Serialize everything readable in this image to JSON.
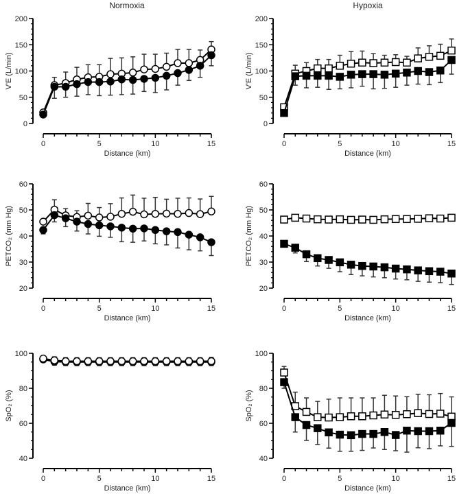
{
  "column_titles": [
    "Normoxia",
    "Hypoxia"
  ],
  "chart_data": [
    {
      "type": "line",
      "panel": "normoxia-ve",
      "column": "Normoxia",
      "marker": "circle",
      "ylabel": "V'E (L/min)",
      "xlabel": "Distance (km)",
      "xlim": [
        0,
        15
      ],
      "xticks": [
        0,
        5,
        10,
        15
      ],
      "ylim": [
        0,
        200
      ],
      "yticks": [
        0,
        50,
        100,
        150,
        200
      ],
      "yminor": 10,
      "x": [
        0,
        1,
        2,
        3,
        4,
        5,
        6,
        7,
        8,
        9,
        10,
        11,
        12,
        13,
        14,
        15
      ],
      "series": [
        {
          "name": "open",
          "fill": "#ffffff",
          "values": [
            21,
            73,
            77,
            84,
            88,
            89,
            94,
            95,
            97,
            103,
            104,
            108,
            115,
            115,
            121,
            141
          ],
          "sd": [
            0,
            15,
            21,
            23,
            24,
            23,
            30,
            30,
            30,
            29,
            28,
            26,
            26,
            26,
            19,
            15
          ],
          "err_dir": "up"
        },
        {
          "name": "filled",
          "fill": "#000000",
          "values": [
            17,
            70,
            70,
            75,
            79,
            79,
            80,
            84,
            83,
            85,
            87,
            91,
            96,
            102,
            110,
            130
          ],
          "sd": [
            0,
            22,
            20,
            23,
            24,
            26,
            26,
            29,
            27,
            24,
            28,
            27,
            23,
            20,
            22,
            20
          ],
          "err_dir": "down"
        }
      ]
    },
    {
      "type": "line",
      "panel": "hypoxia-ve",
      "column": "Hypoxia",
      "marker": "square",
      "ylabel": "V'E (L/min)",
      "xlabel": "Distance (km)",
      "xlim": [
        0,
        15
      ],
      "xticks": [
        0,
        5,
        10,
        15
      ],
      "ylim": [
        0,
        200
      ],
      "yticks": [
        0,
        50,
        100,
        150,
        200
      ],
      "yminor": 10,
      "x": [
        0,
        1,
        2,
        3,
        4,
        5,
        6,
        7,
        8,
        9,
        10,
        11,
        12,
        13,
        14,
        15
      ],
      "series": [
        {
          "name": "open",
          "fill": "#ffffff",
          "values": [
            31,
            95,
            100,
            105,
            105,
            110,
            114,
            116,
            115,
            116,
            117,
            116,
            124,
            127,
            129,
            139
          ],
          "sd": [
            0,
            16,
            16,
            17,
            17,
            20,
            23,
            22,
            18,
            14,
            14,
            12,
            20,
            21,
            22,
            22
          ],
          "err_dir": "up"
        },
        {
          "name": "filled",
          "fill": "#000000",
          "values": [
            20,
            90,
            91,
            91,
            91,
            89,
            93,
            94,
            94,
            93,
            95,
            97,
            100,
            98,
            101,
            121
          ],
          "sd": [
            0,
            17,
            23,
            22,
            26,
            23,
            25,
            23,
            28,
            26,
            26,
            24,
            25,
            24,
            23,
            27
          ],
          "err_dir": "down"
        }
      ]
    },
    {
      "type": "line",
      "panel": "normoxia-petco2",
      "column": "Normoxia",
      "marker": "circle",
      "ylabel": "PETCO₂ (mm Hg)",
      "xlabel": "Distance (km)",
      "xlim": [
        0,
        15
      ],
      "xticks": [
        0,
        5,
        10,
        15
      ],
      "ylim": [
        20,
        60
      ],
      "yticks": [
        20,
        30,
        40,
        50,
        60
      ],
      "yminor": 2,
      "x": [
        0,
        1,
        2,
        3,
        4,
        5,
        6,
        7,
        8,
        9,
        10,
        11,
        12,
        13,
        14,
        15
      ],
      "series": [
        {
          "name": "open",
          "fill": "#ffffff",
          "values": [
            45.5,
            50.1,
            47.9,
            47.3,
            47.8,
            47.1,
            47.4,
            48.5,
            49.3,
            48.3,
            48.5,
            48.6,
            48.5,
            48.8,
            48.4,
            49.4
          ],
          "sd": [
            0,
            3.8,
            2.6,
            2.4,
            4.7,
            3.8,
            5,
            6.1,
            6.4,
            6.2,
            6.3,
            5.5,
            6,
            5.8,
            5.8,
            5.8
          ],
          "err_dir": "up"
        },
        {
          "name": "filled",
          "fill": "#000000",
          "values": [
            42.3,
            48,
            46.8,
            45.5,
            44.6,
            44.1,
            43.7,
            43.2,
            42.8,
            42.9,
            42.3,
            41.8,
            41.5,
            40.5,
            39.5,
            37.6
          ],
          "sd": [
            1.5,
            2.6,
            3.2,
            3.6,
            3.8,
            4.2,
            4.2,
            5.4,
            5.2,
            4.8,
            5.3,
            5.2,
            6.1,
            5.8,
            5.2,
            5.1
          ],
          "err_dir": "down"
        }
      ]
    },
    {
      "type": "line",
      "panel": "hypoxia-petco2",
      "column": "Hypoxia",
      "marker": "square",
      "ylabel": "PETCO₂ (mm Hg)",
      "xlabel": "Distance (km)",
      "xlim": [
        0,
        15
      ],
      "xticks": [
        0,
        5,
        10,
        15
      ],
      "ylim": [
        20,
        60
      ],
      "yticks": [
        20,
        30,
        40,
        50,
        60
      ],
      "yminor": 2,
      "x": [
        0,
        1,
        2,
        3,
        4,
        5,
        6,
        7,
        8,
        9,
        10,
        11,
        12,
        13,
        14,
        15
      ],
      "series": [
        {
          "name": "open",
          "fill": "#ffffff",
          "values": [
            46.3,
            47,
            46.7,
            46.4,
            46.3,
            46.4,
            46.2,
            46.3,
            46.2,
            46.4,
            46.5,
            46.5,
            46.6,
            46.8,
            46.7,
            47
          ],
          "sd": [
            0.8,
            1,
            0.9,
            0.9,
            0.9,
            1,
            1,
            1,
            0.9,
            1,
            1,
            1,
            1,
            1.2,
            1.1,
            1.3
          ],
          "err_dir": "up"
        },
        {
          "name": "filled",
          "fill": "#000000",
          "values": [
            37,
            35.5,
            33,
            31.5,
            30.8,
            29.9,
            29,
            28.5,
            28.3,
            28,
            27.5,
            27.2,
            26.8,
            26.5,
            26.3,
            25.6
          ],
          "sd": [
            1,
            2,
            2.8,
            3,
            3.2,
            3.6,
            3.8,
            3.8,
            4,
            4,
            4,
            4,
            4.2,
            4.2,
            4.2,
            4.2
          ],
          "err_dir": "down"
        }
      ]
    },
    {
      "type": "line",
      "panel": "normoxia-spo2",
      "column": "Normoxia",
      "marker": "circle",
      "ylabel": "SpO₂ (%)",
      "xlabel": "Distance (km)",
      "xlim": [
        0,
        15
      ],
      "xticks": [
        0,
        5,
        10,
        15
      ],
      "ylim": [
        40,
        100
      ],
      "yticks": [
        40,
        60,
        80,
        100
      ],
      "yminor": 5,
      "x": [
        0,
        1,
        2,
        3,
        4,
        5,
        6,
        7,
        8,
        9,
        10,
        11,
        12,
        13,
        14,
        15
      ],
      "series": [
        {
          "name": "filled",
          "fill": "#000000",
          "values": [
            96.5,
            95.2,
            95,
            95,
            95,
            95,
            95,
            95,
            95,
            95,
            95,
            95,
            95,
            95,
            95,
            95
          ],
          "sd": [
            1,
            2,
            2,
            2,
            2,
            2,
            2,
            2,
            2,
            2,
            2,
            2,
            2,
            2,
            2,
            2
          ],
          "err_dir": "both"
        },
        {
          "name": "open",
          "fill": "#ffffff",
          "values": [
            97,
            96,
            95.5,
            95.5,
            95.5,
            95.5,
            95.5,
            95.5,
            95.5,
            95.5,
            95.5,
            95.5,
            95.5,
            95.5,
            95.5,
            95.5
          ],
          "sd": [
            1,
            2,
            2,
            2,
            2,
            2,
            2,
            2,
            2,
            2,
            2,
            2,
            2,
            2,
            2,
            2.2
          ],
          "err_dir": "both"
        }
      ]
    },
    {
      "type": "line",
      "panel": "hypoxia-spo2",
      "column": "Hypoxia",
      "marker": "square",
      "ylabel": "SpO₂ (%)",
      "xlabel": "Distance (km)",
      "xlim": [
        0,
        15
      ],
      "xticks": [
        0,
        5,
        10,
        15
      ],
      "ylim": [
        40,
        100
      ],
      "yticks": [
        40,
        60,
        80,
        100
      ],
      "yminor": 5,
      "x": [
        0,
        1,
        2,
        3,
        4,
        5,
        6,
        7,
        8,
        9,
        10,
        11,
        12,
        13,
        14,
        15
      ],
      "series": [
        {
          "name": "open",
          "fill": "#ffffff",
          "values": [
            89,
            69.8,
            66.5,
            63.5,
            63.3,
            63.5,
            64,
            64,
            64.5,
            65,
            64.8,
            65.2,
            65.8,
            65.3,
            65.5,
            63.8
          ],
          "sd": [
            3.5,
            8,
            8,
            9,
            10.5,
            11,
            10.5,
            10.5,
            10,
            11,
            10.8,
            10,
            10.8,
            11,
            11.5,
            11.3
          ],
          "err_dir": "up"
        },
        {
          "name": "filled",
          "fill": "#000000",
          "values": [
            83.5,
            63.5,
            59,
            57.2,
            54.8,
            53.5,
            53.2,
            53.9,
            53.9,
            55,
            53.3,
            55.8,
            55.5,
            55.5,
            55.8,
            60.2
          ],
          "sd": [
            3.5,
            8.5,
            8.8,
            9.3,
            9,
            9.5,
            9.2,
            9.4,
            8,
            10,
            9,
            12.3,
            9.5,
            10,
            8.7,
            13.4
          ],
          "err_dir": "down"
        }
      ]
    }
  ]
}
